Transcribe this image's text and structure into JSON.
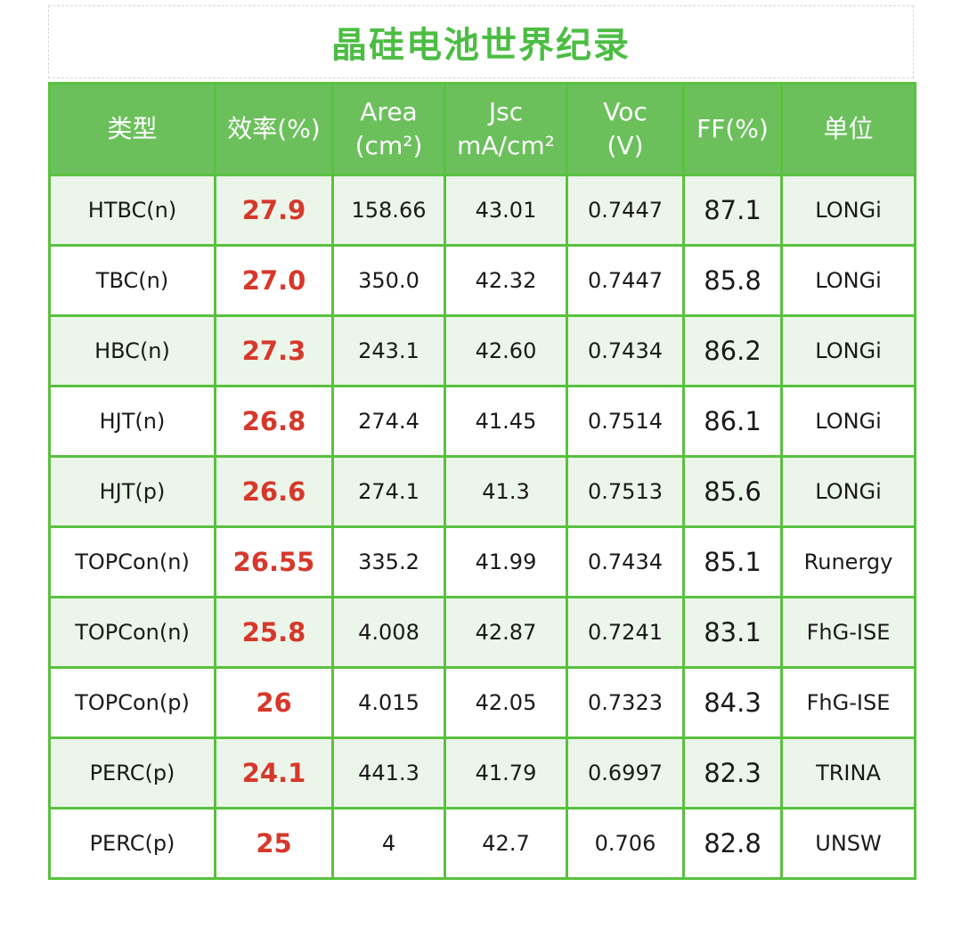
{
  "title": "晶硅电池世界纪录",
  "header": {
    "type": "类型",
    "efficiency": "效率(%)",
    "area_line1": "Area",
    "area_line2": "(cm²)",
    "jsc_line1": "Jsc",
    "jsc_line2": "mA/cm²",
    "voc_line1": "Voc",
    "voc_line2": "(V)",
    "ff": "FF(%)",
    "unit": "单位"
  },
  "rows": [
    {
      "type": "HTBC(n)",
      "efficiency": "27.9",
      "area": "158.66",
      "jsc": "43.01",
      "voc": "0.7447",
      "ff": "87.1",
      "unit": "LONGi"
    },
    {
      "type": "TBC(n)",
      "efficiency": "27.0",
      "area": "350.0",
      "jsc": "42.32",
      "voc": "0.7447",
      "ff": "85.8",
      "unit": "LONGi"
    },
    {
      "type": "HBC(n)",
      "efficiency": "27.3",
      "area": "243.1",
      "jsc": "42.60",
      "voc": "0.7434",
      "ff": "86.2",
      "unit": "LONGi"
    },
    {
      "type": "HJT(n)",
      "efficiency": "26.8",
      "area": "274.4",
      "jsc": "41.45",
      "voc": "0.7514",
      "ff": "86.1",
      "unit": "LONGi"
    },
    {
      "type": "HJT(p)",
      "efficiency": "26.6",
      "area": "274.1",
      "jsc": "41.3",
      "voc": "0.7513",
      "ff": "85.6",
      "unit": "LONGi"
    },
    {
      "type": "TOPCon(n)",
      "efficiency": "26.55",
      "area": "335.2",
      "jsc": "41.99",
      "voc": "0.7434",
      "ff": "85.1",
      "unit": "Runergy"
    },
    {
      "type": "TOPCon(n)",
      "efficiency": "25.8",
      "area": "4.008",
      "jsc": "42.87",
      "voc": "0.7241",
      "ff": "83.1",
      "unit": "FhG-ISE"
    },
    {
      "type": "TOPCon(p)",
      "efficiency": "26",
      "area": "4.015",
      "jsc": "42.05",
      "voc": "0.7323",
      "ff": "84.3",
      "unit": "FhG-ISE"
    },
    {
      "type": "PERC(p)",
      "efficiency": "24.1",
      "area": "441.3",
      "jsc": "41.79",
      "voc": "0.6997",
      "ff": "82.3",
      "unit": "TRINA"
    },
    {
      "type": "PERC(p)",
      "efficiency": "25",
      "area": "4",
      "jsc": "42.7",
      "voc": "0.706",
      "ff": "82.8",
      "unit": "UNSW"
    }
  ],
  "colors": {
    "accent_green": "#59c13f",
    "header_bg": "#6cc05c",
    "row_shade": "#ebf5e9",
    "efficiency_red": "#d6382b",
    "title_green": "#4cbd43"
  }
}
